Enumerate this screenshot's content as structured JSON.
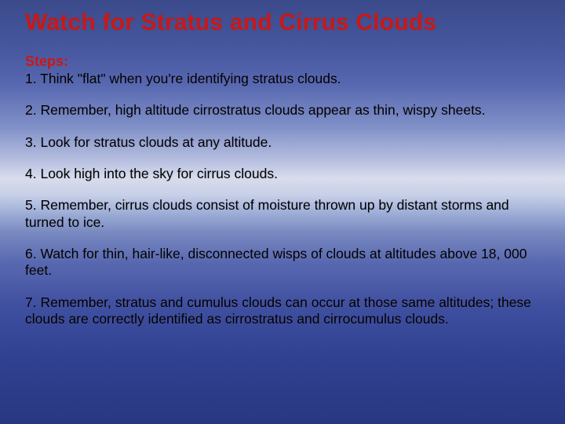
{
  "slide": {
    "title": "Watch for Stratus and Cirrus Clouds",
    "steps_label": "Steps:",
    "steps": [
      "1.  Think \"flat\" when you're identifying stratus clouds.",
      "2.  Remember, high altitude cirrostratus clouds appear as thin, wispy sheets.",
      "3.  Look for stratus clouds at any altitude.",
      "4.  Look high into the sky for cirrus clouds.",
      "5.  Remember, cirrus clouds consist of moisture thrown up by distant storms and turned to ice.",
      "6.  Watch for thin, hair-like, disconnected wisps of clouds at altitudes above 18, 000 feet.",
      "7.  Remember, stratus and cumulus clouds can occur at those same altitudes; these clouds are correctly identified as cirrostratus and cirrocumulus clouds."
    ]
  },
  "style": {
    "title_color": "#c81818",
    "label_color": "#c81818",
    "text_color": "#000000",
    "title_fontsize": 30,
    "label_fontsize": 18,
    "step_fontsize": 17.5,
    "background_gradient": [
      "#3a4a8a",
      "#4858a0",
      "#5868b0",
      "#8090c8",
      "#b8c0e0",
      "#d8dcec",
      "#c8d0e8",
      "#a0b0d8",
      "#7888c0",
      "#5868b0",
      "#4050a0",
      "#304090",
      "#283880"
    ]
  }
}
